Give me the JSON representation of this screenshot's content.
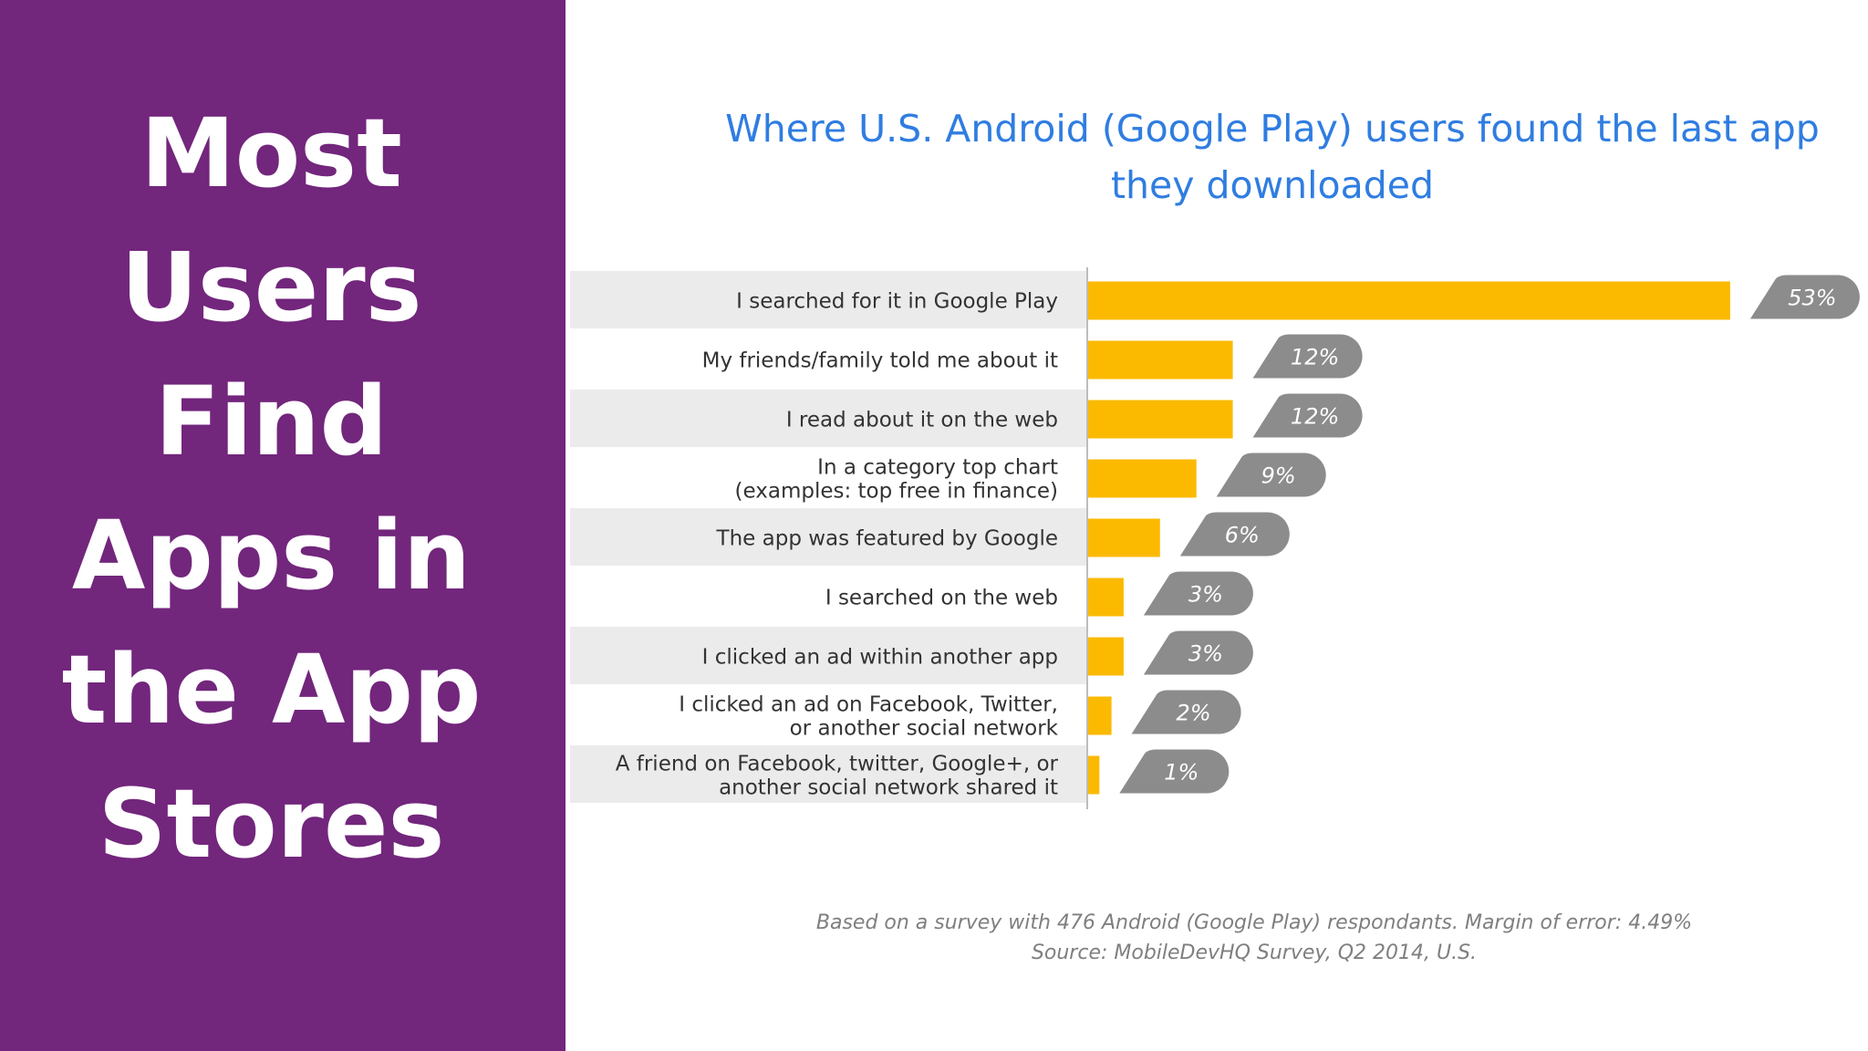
{
  "slide": {
    "title_lines": [
      "Most",
      "Users",
      "Find",
      "Apps in",
      "the App",
      "Stores"
    ]
  },
  "chart_data": {
    "type": "bar",
    "orientation": "horizontal",
    "title_lines": [
      "Where U.S. Android (Google Play) users found the last app",
      "they downloaded"
    ],
    "categories": [
      [
        "I searched for it in Google Play"
      ],
      [
        "My friends/family told me about it"
      ],
      [
        "I read about it on the web"
      ],
      [
        "In a category top chart",
        "(examples: top free in finance)"
      ],
      [
        "The app was featured by Google"
      ],
      [
        "I searched on the web"
      ],
      [
        "I clicked an ad within another app"
      ],
      [
        "I clicked an ad on Facebook, Twitter,",
        "or another social network"
      ],
      [
        "A friend on Facebook, twitter, Google+, or",
        "another social network shared it"
      ]
    ],
    "values": [
      53,
      12,
      12,
      9,
      6,
      3,
      3,
      2,
      1
    ],
    "value_labels": [
      "53%",
      "12%",
      "12%",
      "9%",
      "6%",
      "3%",
      "3%",
      "2%",
      "1%"
    ],
    "bar_color": "#fbba00",
    "label_tag_color": "#8c8c8c",
    "row_shade_color": "#ebebeb",
    "grid": false,
    "footnote_lines": [
      "Based on a survey with 476 Android (Google Play) respondants. Margin of error: 4.49%",
      "Source: MobileDevHQ Survey, Q2 2014, U.S."
    ]
  }
}
